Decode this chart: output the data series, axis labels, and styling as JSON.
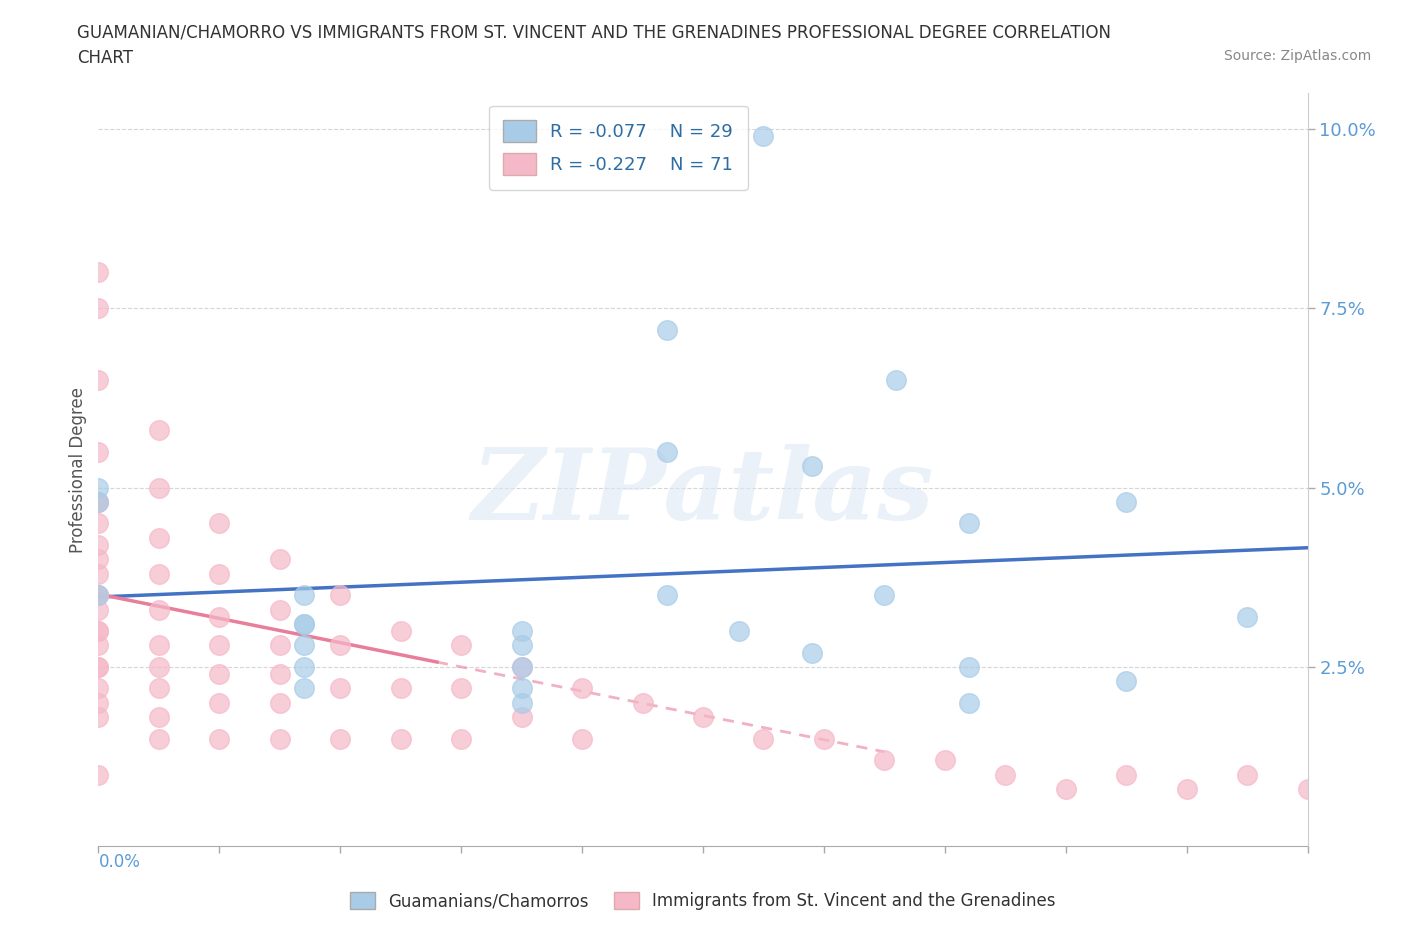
{
  "title_line1": "GUAMANIAN/CHAMORRO VS IMMIGRANTS FROM ST. VINCENT AND THE GRENADINES PROFESSIONAL DEGREE CORRELATION",
  "title_line2": "CHART",
  "source": "Source: ZipAtlas.com",
  "ylabel": "Professional Degree",
  "ylabel_right_ticks": [
    "10.0%",
    "7.5%",
    "5.0%",
    "2.5%"
  ],
  "ylabel_right_vals": [
    0.1,
    0.075,
    0.05,
    0.025
  ],
  "xmin": 0.0,
  "xmax": 0.1,
  "ymin": 0.0,
  "ymax": 0.105,
  "legend_label1": "Guamanians/Chamorros",
  "legend_label2": "Immigrants from St. Vincent and the Grenadines",
  "legend_R1": "R = -0.077",
  "legend_N1": "N = 29",
  "legend_R2": "R = -0.227",
  "legend_N2": "N = 71",
  "color_blue": "#a8cce8",
  "color_pink": "#f5b8c8",
  "trendline_blue_color": "#4472c4",
  "trendline_pink_color": "#e87e9a",
  "watermark": "ZIPatlas",
  "blue_scatter_x": [
    0.055,
    0.047,
    0.047,
    0.047,
    0.066,
    0.0,
    0.0,
    0.017,
    0.017,
    0.017,
    0.017,
    0.017,
    0.017,
    0.035,
    0.035,
    0.035,
    0.035,
    0.035,
    0.053,
    0.059,
    0.059,
    0.072,
    0.072,
    0.072,
    0.085,
    0.085,
    0.095,
    0.065,
    0.0
  ],
  "blue_scatter_y": [
    0.099,
    0.072,
    0.055,
    0.035,
    0.065,
    0.048,
    0.035,
    0.035,
    0.031,
    0.031,
    0.028,
    0.025,
    0.022,
    0.03,
    0.028,
    0.025,
    0.022,
    0.02,
    0.03,
    0.053,
    0.027,
    0.045,
    0.025,
    0.02,
    0.048,
    0.023,
    0.032,
    0.035,
    0.05
  ],
  "pink_scatter_x": [
    0.0,
    0.0,
    0.0,
    0.0,
    0.0,
    0.0,
    0.0,
    0.0,
    0.0,
    0.0,
    0.0,
    0.0,
    0.0,
    0.0,
    0.0,
    0.005,
    0.005,
    0.005,
    0.005,
    0.005,
    0.005,
    0.005,
    0.005,
    0.005,
    0.005,
    0.01,
    0.01,
    0.01,
    0.01,
    0.01,
    0.01,
    0.01,
    0.015,
    0.015,
    0.015,
    0.015,
    0.015,
    0.015,
    0.02,
    0.02,
    0.02,
    0.02,
    0.025,
    0.025,
    0.025,
    0.03,
    0.03,
    0.03,
    0.035,
    0.035,
    0.04,
    0.04,
    0.045,
    0.05,
    0.055,
    0.06,
    0.065,
    0.07,
    0.075,
    0.08,
    0.085,
    0.09,
    0.095,
    0.1,
    0.0,
    0.0,
    0.0,
    0.0,
    0.0,
    0.0,
    0.0
  ],
  "pink_scatter_y": [
    0.08,
    0.075,
    0.065,
    0.055,
    0.048,
    0.045,
    0.04,
    0.038,
    0.035,
    0.033,
    0.03,
    0.028,
    0.025,
    0.022,
    0.02,
    0.058,
    0.05,
    0.043,
    0.038,
    0.033,
    0.028,
    0.025,
    0.022,
    0.018,
    0.015,
    0.045,
    0.038,
    0.032,
    0.028,
    0.024,
    0.02,
    0.015,
    0.04,
    0.033,
    0.028,
    0.024,
    0.02,
    0.015,
    0.035,
    0.028,
    0.022,
    0.015,
    0.03,
    0.022,
    0.015,
    0.028,
    0.022,
    0.015,
    0.025,
    0.018,
    0.022,
    0.015,
    0.02,
    0.018,
    0.015,
    0.015,
    0.012,
    0.012,
    0.01,
    0.008,
    0.01,
    0.008,
    0.01,
    0.008,
    0.048,
    0.042,
    0.035,
    0.03,
    0.025,
    0.018,
    0.01
  ]
}
